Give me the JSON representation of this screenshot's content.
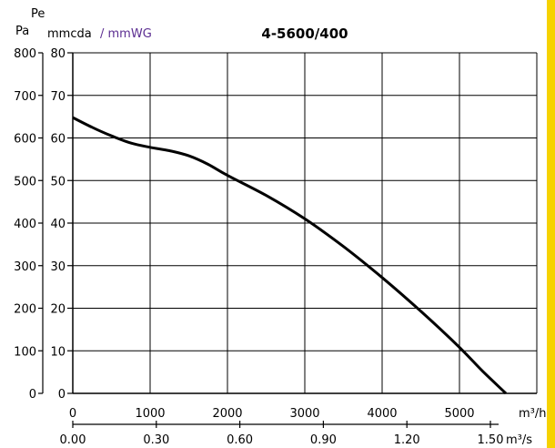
{
  "chart_data": {
    "type": "line",
    "title": "4-5600/400",
    "y_axis_top_label": "Pe",
    "y_unit_pa": "Pa",
    "y_unit_mmcda": "mmcda",
    "y_unit_mmwg": "/ mmWG",
    "x_unit_primary": "m³/h",
    "x_unit_secondary": "m³/s",
    "xlim": [
      0,
      6000
    ],
    "ylim": [
      0,
      800
    ],
    "grid": true,
    "x_ticks": [
      0,
      1000,
      2000,
      3000,
      4000,
      5000
    ],
    "x_tick_labels": [
      "0",
      "1000",
      "2000",
      "3000",
      "4000",
      "5000"
    ],
    "x2_ticks": [
      0.0,
      0.3,
      0.6,
      0.9,
      1.2,
      1.5
    ],
    "x2_tick_labels": [
      "0.00",
      "0.30",
      "0.60",
      "0.90",
      "1.20",
      "1.50"
    ],
    "y_pa_ticks": [
      0,
      100,
      200,
      300,
      400,
      500,
      600,
      700,
      800
    ],
    "y_pa_tick_labels": [
      "0",
      "100",
      "200",
      "300",
      "400",
      "500",
      "600",
      "700",
      "800"
    ],
    "y_mm_tick_labels": [
      "0",
      "10",
      "20",
      "30",
      "40",
      "50",
      "60",
      "70",
      "80"
    ],
    "series": [
      {
        "x": [
          0,
          250,
          500,
          750,
          1000,
          1250,
          1500,
          1750,
          2000,
          2500,
          3000,
          3500,
          4000,
          4500,
          5000,
          5300,
          5600
        ],
        "values": [
          648,
          625,
          605,
          588,
          578,
          570,
          558,
          538,
          512,
          465,
          410,
          345,
          272,
          193,
          108,
          52,
          0
        ],
        "color": "#000000"
      }
    ]
  },
  "colors": {
    "accent_edge": "#f6d200",
    "mmwg_label": "#5b2d91"
  }
}
